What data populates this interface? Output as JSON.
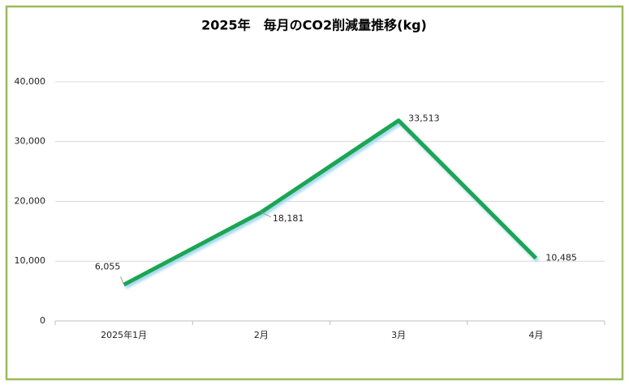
{
  "chart_data": {
    "type": "line",
    "title": "2025年　毎月のCO2削減量推移(kg)",
    "categories": [
      "2025年1月",
      "2月",
      "3月",
      "4月"
    ],
    "series": [
      {
        "name": "CO2削減量",
        "color": "#1ea552",
        "values": [
          6055,
          18181,
          33513,
          10485
        ],
        "value_labels": [
          "6,055",
          "18,181",
          "33,513",
          "10,485"
        ]
      }
    ],
    "ylim": [
      0,
      45000
    ],
    "yticks": [
      0,
      {
        "value": 10000,
        "label": "10,000"
      },
      {
        "value": 20000,
        "label": "20,000"
      },
      {
        "value": 30000,
        "label": "30,000"
      },
      {
        "value": 40000,
        "label": "40,000"
      }
    ],
    "grid": true,
    "legend": false
  }
}
